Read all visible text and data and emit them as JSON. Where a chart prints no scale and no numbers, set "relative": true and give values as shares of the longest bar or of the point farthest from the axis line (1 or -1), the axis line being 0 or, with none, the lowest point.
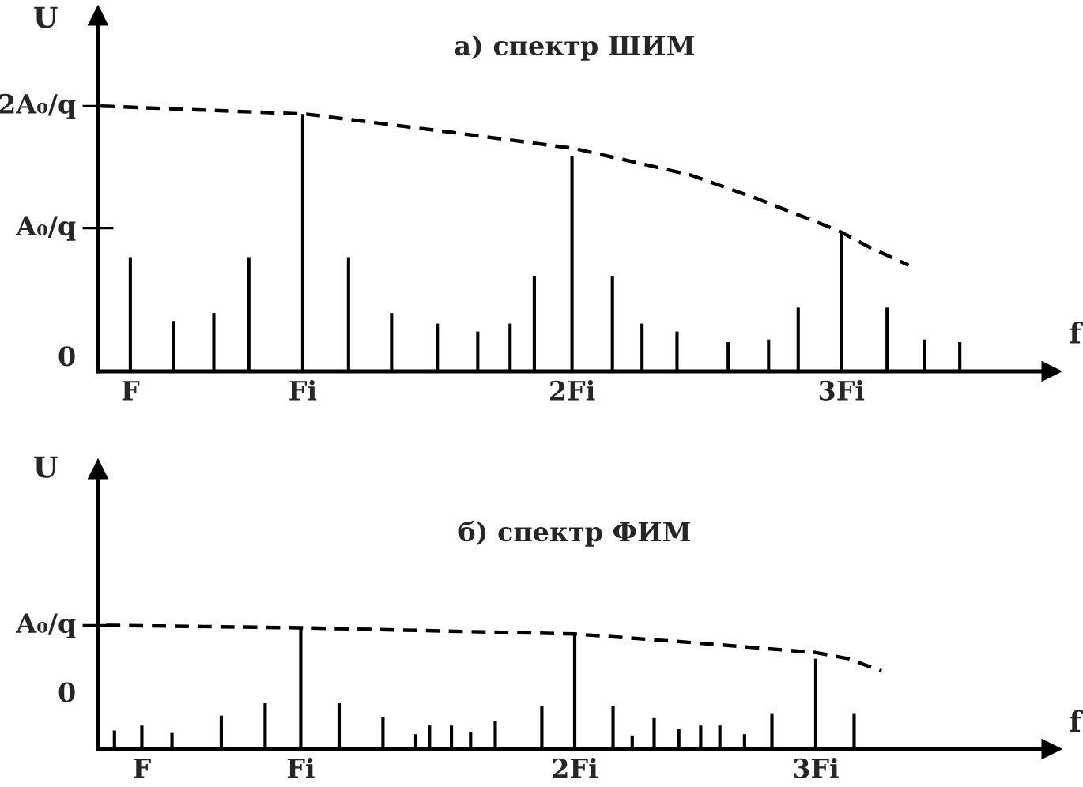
{
  "chart_data": [
    {
      "type": "bar",
      "title": "а) спектр ШИМ",
      "xlabel": "f",
      "ylabel": "U",
      "relative": true,
      "xlim": [
        0.24,
        3.78
      ],
      "xticks": [
        {
          "value": 0.36,
          "label": "F"
        },
        {
          "value": 1,
          "label": "Fi"
        },
        {
          "value": 2,
          "label": "2Fi"
        },
        {
          "value": 3,
          "label": "3Fi"
        }
      ],
      "annotations": [
        "2A₀/q",
        "A₀/q",
        "0"
      ],
      "series": [
        {
          "color": "#000000",
          "x": [
            0.36,
            0.52,
            0.67,
            0.8,
            1,
            1.17,
            1.33,
            1.5,
            1.65,
            1.77,
            1.86,
            2,
            2.15,
            2.26,
            2.39,
            2.58,
            2.73,
            2.84,
            3,
            3.17,
            3.31,
            3.44
          ],
          "values": [
            0.43,
            0.19,
            0.22,
            0.43,
            0.97,
            0.43,
            0.22,
            0.18,
            0.15,
            0.18,
            0.36,
            0.81,
            0.36,
            0.18,
            0.15,
            0.11,
            0.12,
            0.24,
            0.52,
            0.24,
            0.12,
            0.11
          ]
        },
        {
          "type": "line",
          "line_style": "dashed",
          "color": "#000000",
          "x": [
            0.25,
            1.01,
            1.56,
            2.01,
            2.44,
            2.69,
            2.99,
            3.1,
            3.25
          ],
          "values": [
            1,
            0.97,
            0.9,
            0.84,
            0.74,
            0.65,
            0.53,
            0.47,
            0.4
          ]
        }
      ]
    },
    {
      "type": "bar",
      "title": "б) спектр ФИМ",
      "xlabel": "f",
      "ylabel": "U",
      "relative": true,
      "xlim": [
        0.26,
        3.74
      ],
      "xticks": [
        {
          "value": 0.42,
          "label": "F"
        },
        {
          "value": 1,
          "label": "Fi"
        },
        {
          "value": 2,
          "label": "2Fi"
        },
        {
          "value": 2.88,
          "label": "3Fi"
        }
      ],
      "annotations": [
        "A₀/q",
        "0"
      ],
      "series": [
        {
          "color": "#000000",
          "x": [
            0.32,
            0.42,
            0.53,
            0.71,
            0.87,
            1,
            1.14,
            1.3,
            1.42,
            1.47,
            1.55,
            1.62,
            1.71,
            1.88,
            2,
            2.14,
            2.21,
            2.29,
            2.38,
            2.46,
            2.53,
            2.62,
            2.72,
            2.88,
            3.02
          ],
          "values": [
            0.15,
            0.19,
            0.13,
            0.27,
            0.37,
            0.98,
            0.37,
            0.26,
            0.12,
            0.19,
            0.19,
            0.14,
            0.23,
            0.35,
            0.92,
            0.35,
            0.11,
            0.25,
            0.16,
            0.19,
            0.19,
            0.12,
            0.29,
            0.73,
            0.29
          ]
        },
        {
          "type": "line",
          "line_style": "dashed",
          "color": "#000000",
          "x": [
            0.29,
            1,
            2,
            2.43,
            2.88,
            3,
            3.12
          ],
          "values": [
            1.0,
            0.98,
            0.93,
            0.86,
            0.78,
            0.73,
            0.63
          ]
        }
      ]
    }
  ]
}
